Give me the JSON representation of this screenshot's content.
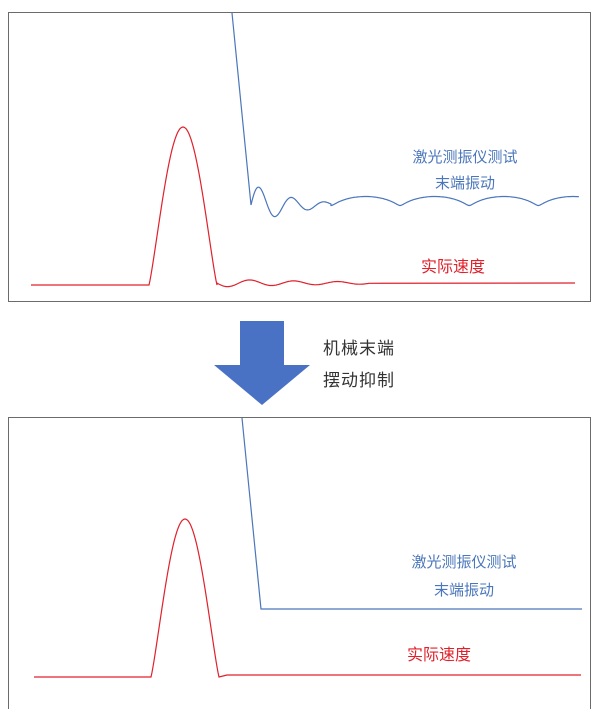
{
  "colors": {
    "vibration": "#4a76bb",
    "velocity": "#e0212b",
    "arrow": "#4a72c4",
    "frame": "#6b6b6b"
  },
  "top_panel": {
    "vibration_label_line1": "激光测振仪测试",
    "vibration_label_line2": "末端振动",
    "velocity_label": "实际速度"
  },
  "transition": {
    "line1": "机械末端",
    "line2": "摆动抑制"
  },
  "bottom_panel": {
    "vibration_label_line1": "激光测振仪测试",
    "vibration_label_line2": "末端振动",
    "velocity_label": "实际速度"
  }
}
